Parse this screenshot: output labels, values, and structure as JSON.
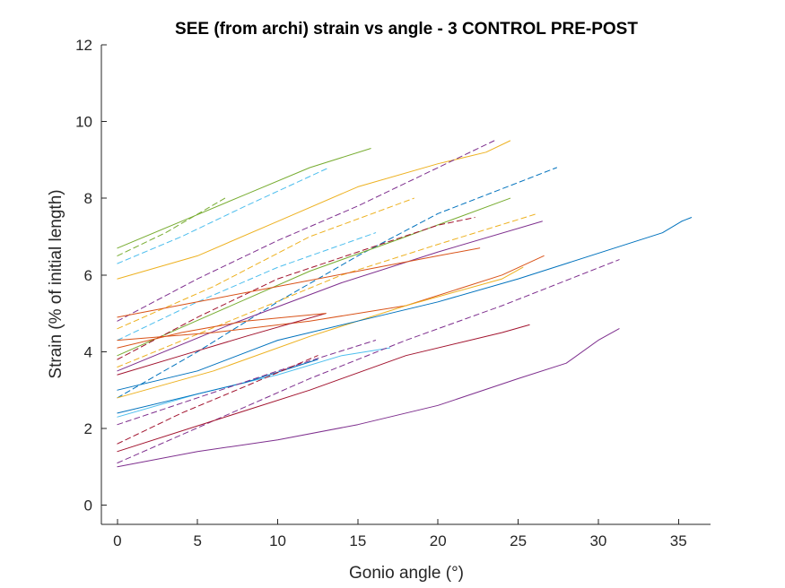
{
  "chart_data": {
    "type": "line",
    "title": "SEE (from archi) strain vs angle - 3 CONTROL PRE-POST",
    "xlabel": "Gonio angle (°)",
    "ylabel": "Strain (% of initial length)",
    "xlim": [
      -1,
      37
    ],
    "ylim": [
      -0.5,
      12
    ],
    "xticks": [
      0,
      5,
      10,
      15,
      20,
      25,
      30,
      35
    ],
    "yticks": [
      0,
      2,
      4,
      6,
      8,
      10,
      12
    ],
    "grid": false,
    "colors": {
      "blue": "#0072BD",
      "orange": "#D95319",
      "yellow": "#EDB120",
      "purple": "#7E2F8E",
      "green": "#77AC30",
      "cyan": "#4DBEEE",
      "red": "#A2142F"
    },
    "series": [
      {
        "color": "green",
        "dash": "solid",
        "x": [
          0,
          4,
          8,
          12,
          15.8
        ],
        "y": [
          6.7,
          7.4,
          8.1,
          8.8,
          9.3
        ]
      },
      {
        "color": "green",
        "dash": "dashed",
        "x": [
          0,
          3,
          6.7
        ],
        "y": [
          6.5,
          7.1,
          8.0
        ]
      },
      {
        "color": "cyan",
        "dash": "dashed",
        "x": [
          0,
          4,
          8,
          13.2
        ],
        "y": [
          6.3,
          7.0,
          7.8,
          8.8
        ]
      },
      {
        "color": "yellow",
        "dash": "solid",
        "x": [
          0,
          5,
          10,
          15,
          20,
          23,
          24.5
        ],
        "y": [
          5.9,
          6.5,
          7.4,
          8.3,
          8.9,
          9.2,
          9.5
        ]
      },
      {
        "color": "purple",
        "dash": "dashed",
        "x": [
          0,
          5,
          10,
          15,
          20,
          23.5
        ],
        "y": [
          4.8,
          5.9,
          6.9,
          7.8,
          8.8,
          9.5
        ]
      },
      {
        "color": "yellow",
        "dash": "dashed",
        "x": [
          0,
          6,
          12,
          18.5
        ],
        "y": [
          4.6,
          5.7,
          7.0,
          8.0
        ]
      },
      {
        "color": "blue",
        "dash": "dashed",
        "x": [
          0,
          5,
          10,
          15,
          20,
          27.4
        ],
        "y": [
          2.8,
          4.0,
          5.3,
          6.5,
          7.6,
          8.8
        ]
      },
      {
        "color": "cyan",
        "dash": "dashed",
        "x": [
          0,
          5,
          10,
          16.1
        ],
        "y": [
          4.3,
          5.3,
          6.2,
          7.1
        ]
      },
      {
        "color": "green",
        "dash": "solid",
        "x": [
          0,
          6,
          12,
          18,
          24.5
        ],
        "y": [
          3.9,
          5.0,
          6.1,
          7.0,
          8.0
        ]
      },
      {
        "color": "yellow",
        "dash": "dashed",
        "x": [
          0,
          7,
          14,
          20,
          26.2
        ],
        "y": [
          3.6,
          4.8,
          6.0,
          6.8,
          7.6
        ]
      },
      {
        "color": "purple",
        "dash": "solid",
        "x": [
          0,
          7,
          14,
          20,
          26.5
        ],
        "y": [
          3.5,
          4.7,
          5.8,
          6.6,
          7.4
        ]
      },
      {
        "color": "red",
        "dash": "dashed",
        "x": [
          0,
          5,
          10,
          15,
          20,
          22.3
        ],
        "y": [
          3.8,
          4.9,
          5.9,
          6.6,
          7.3,
          7.5
        ]
      },
      {
        "color": "orange",
        "dash": "solid",
        "x": [
          0,
          5,
          10,
          15,
          20,
          22.6
        ],
        "y": [
          4.9,
          5.3,
          5.7,
          6.1,
          6.5,
          6.7
        ]
      },
      {
        "color": "orange",
        "dash": "solid",
        "x": [
          0,
          6,
          12,
          18,
          24,
          26.6
        ],
        "y": [
          4.3,
          4.5,
          4.8,
          5.2,
          6.0,
          6.5
        ]
      },
      {
        "color": "yellow",
        "dash": "solid",
        "x": [
          0,
          6,
          12,
          18,
          24,
          25.3
        ],
        "y": [
          2.8,
          3.5,
          4.4,
          5.2,
          5.9,
          6.2
        ]
      },
      {
        "color": "blue",
        "dash": "solid",
        "x": [
          0,
          5,
          10,
          15,
          20,
          25,
          28,
          31,
          34,
          35.2,
          35.8
        ],
        "y": [
          3.0,
          3.5,
          4.3,
          4.8,
          5.3,
          5.9,
          6.3,
          6.7,
          7.1,
          7.4,
          7.5
        ]
      },
      {
        "color": "red",
        "dash": "solid",
        "x": [
          0,
          4,
          8,
          13
        ],
        "y": [
          3.4,
          3.9,
          4.4,
          5.0
        ]
      },
      {
        "color": "orange",
        "dash": "solid",
        "x": [
          0,
          4,
          8,
          13
        ],
        "y": [
          4.1,
          4.5,
          4.8,
          5.0
        ]
      },
      {
        "color": "cyan",
        "dash": "solid",
        "x": [
          0,
          5,
          10,
          14,
          17
        ],
        "y": [
          2.3,
          2.9,
          3.4,
          3.9,
          4.1
        ]
      },
      {
        "color": "blue",
        "dash": "solid",
        "x": [
          0,
          4,
          8,
          12.5
        ],
        "y": [
          2.4,
          2.8,
          3.2,
          3.8
        ]
      },
      {
        "color": "purple",
        "dash": "dashed",
        "x": [
          0,
          5,
          10,
          16.1
        ],
        "y": [
          2.1,
          2.8,
          3.5,
          4.3
        ]
      },
      {
        "color": "purple",
        "dash": "dashed",
        "x": [
          0,
          6,
          12,
          18,
          24,
          31.3
        ],
        "y": [
          1.1,
          2.2,
          3.3,
          4.3,
          5.2,
          6.4
        ]
      },
      {
        "color": "red",
        "dash": "dashed",
        "x": [
          0,
          4,
          8,
          12.5
        ],
        "y": [
          1.6,
          2.4,
          3.1,
          3.9
        ]
      },
      {
        "color": "red",
        "dash": "solid",
        "x": [
          0,
          6,
          12,
          18,
          24,
          25.7
        ],
        "y": [
          1.4,
          2.2,
          3.0,
          3.9,
          4.5,
          4.7
        ]
      },
      {
        "color": "purple",
        "dash": "solid",
        "x": [
          0,
          5,
          10,
          15,
          20,
          25,
          28,
          30,
          31.3
        ],
        "y": [
          1.0,
          1.4,
          1.7,
          2.1,
          2.6,
          3.3,
          3.7,
          4.3,
          4.6
        ]
      }
    ]
  }
}
